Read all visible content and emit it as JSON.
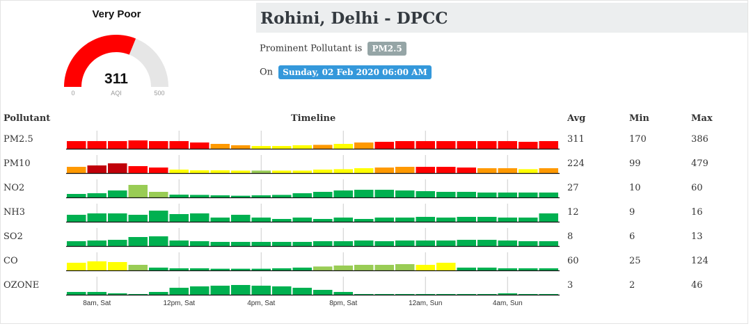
{
  "gauge": {
    "status": "Very Poor",
    "value": "311",
    "min": "0",
    "max": "500",
    "unit": "AQI",
    "fill_fraction": 0.622,
    "fill_color": "#ff0000",
    "track_color": "#e6e6e6"
  },
  "header": {
    "title": "Rohini, Delhi - DPCC",
    "prominent_label": "Prominent Pollutant is",
    "prominent_value": "PM2.5",
    "on_label": "On",
    "datetime": "Sunday, 02 Feb 2020 06:00 AM"
  },
  "table": {
    "col_pollutant": "Pollutant",
    "col_timeline": "Timeline",
    "col_avg": "Avg",
    "col_min": "Min",
    "col_max": "Max"
  },
  "colors": {
    "d": "#c0000a",
    "r": "#ff0000",
    "o": "#ff9900",
    "y": "#ffff00",
    "l": "#99cc55",
    "g": "#00b050"
  },
  "time_labels": [
    "8am, Sat",
    "12pm, Sat",
    "4pm, Sat",
    "8pm, Sat",
    "12am, Sun",
    "4am, Sun"
  ],
  "chart_data": {
    "type": "bar",
    "categories_count": 24,
    "series": [
      {
        "name": "PM2.5",
        "avg": "311",
        "min": "170",
        "max": "386",
        "levels": [
          0.55,
          0.55,
          0.55,
          0.6,
          0.55,
          0.55,
          0.45,
          0.35,
          0.25,
          0.2,
          0.2,
          0.25,
          0.28,
          0.35,
          0.45,
          0.5,
          0.55,
          0.55,
          0.55,
          0.55,
          0.55,
          0.55,
          0.5,
          0.55
        ],
        "colors": "rrrrrrrooyyyoyorrrrrrrrr"
      },
      {
        "name": "PM10",
        "avg": "224",
        "min": "99",
        "max": "479",
        "levels": [
          0.45,
          0.55,
          0.7,
          0.5,
          0.4,
          0.25,
          0.2,
          0.2,
          0.18,
          0.18,
          0.18,
          0.18,
          0.25,
          0.28,
          0.35,
          0.4,
          0.45,
          0.45,
          0.45,
          0.4,
          0.35,
          0.35,
          0.28,
          0.35
        ],
        "colors": "oddrryyyylyyyyyoorrrooyo"
      },
      {
        "name": "NO2",
        "avg": "27",
        "min": "10",
        "max": "60",
        "levels": [
          0.25,
          0.3,
          0.5,
          0.9,
          0.4,
          0.2,
          0.18,
          0.15,
          0.12,
          0.15,
          0.18,
          0.3,
          0.4,
          0.5,
          0.55,
          0.55,
          0.5,
          0.45,
          0.4,
          0.4,
          0.35,
          0.35,
          0.35,
          0.35
        ],
        "colors": "gggllggggggggggggggggggg"
      },
      {
        "name": "NH3",
        "avg": "12",
        "min": "9",
        "max": "16",
        "levels": [
          0.5,
          0.6,
          0.6,
          0.5,
          0.8,
          0.55,
          0.6,
          0.3,
          0.5,
          0.3,
          0.2,
          0.3,
          0.2,
          0.3,
          0.2,
          0.3,
          0.3,
          0.35,
          0.3,
          0.35,
          0.35,
          0.3,
          0.3,
          0.6
        ],
        "colors": "gggggggggggggggggggggggg"
      },
      {
        "name": "SO2",
        "avg": "8",
        "min": "6",
        "max": "13",
        "levels": [
          0.35,
          0.4,
          0.45,
          0.65,
          0.7,
          0.4,
          0.35,
          0.3,
          0.3,
          0.3,
          0.3,
          0.3,
          0.35,
          0.35,
          0.4,
          0.35,
          0.4,
          0.4,
          0.4,
          0.45,
          0.45,
          0.4,
          0.35,
          0.35
        ],
        "colors": "gggggggggggggggggggggggg"
      },
      {
        "name": "CO",
        "avg": "60",
        "min": "25",
        "max": "124",
        "levels": [
          0.55,
          0.65,
          0.6,
          0.4,
          0.2,
          0.15,
          0.15,
          0.12,
          0.12,
          0.12,
          0.15,
          0.2,
          0.28,
          0.35,
          0.4,
          0.4,
          0.45,
          0.4,
          0.55,
          0.2,
          0.2,
          0.15,
          0.15,
          0.15
        ],
        "colors": "yyylgggggggglllllyyggggg"
      },
      {
        "name": "OZONE",
        "avg": "3",
        "min": "2",
        "max": "46",
        "levels": [
          0.2,
          0.2,
          0.1,
          0.0,
          0.2,
          0.5,
          0.6,
          0.65,
          0.7,
          0.65,
          0.6,
          0.5,
          0.35,
          0.2,
          0.05,
          0.02,
          0.02,
          0.02,
          0.02,
          0.02,
          0.02,
          0.1,
          0.02,
          0.02
        ],
        "colors": "gggggggggggggggggggggggg"
      }
    ]
  }
}
